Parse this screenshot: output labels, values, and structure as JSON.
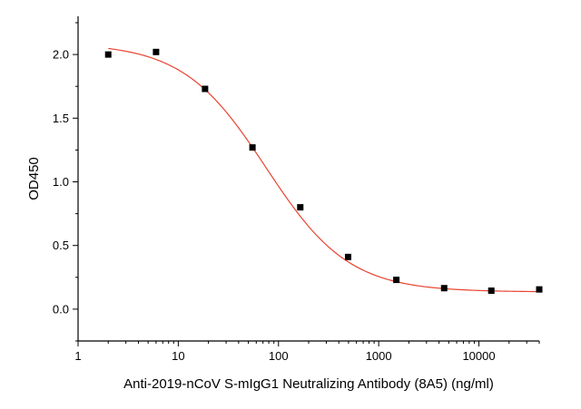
{
  "chart_data": {
    "type": "scatter",
    "title": "",
    "xlabel": "Anti-2019-nCoV S-mIgG1 Neutralizing Antibody (8A5) (ng/ml)",
    "ylabel": "OD450",
    "x_scale": "log",
    "xlim": [
      1,
      40000
    ],
    "ylim": [
      -0.25,
      2.3
    ],
    "x_ticks": [
      1,
      10,
      100,
      1000,
      10000
    ],
    "x_tick_labels": [
      "1",
      "10",
      "100",
      "1000",
      "10000"
    ],
    "y_ticks": [
      0.0,
      0.5,
      1.0,
      1.5,
      2.0
    ],
    "y_tick_labels": [
      "0.0",
      "0.5",
      "1.0",
      "1.5",
      "2.0"
    ],
    "grid": false,
    "series": [
      {
        "points": [
          {
            "x": 2,
            "y": 2.0
          },
          {
            "x": 6,
            "y": 2.02
          },
          {
            "x": 18.5,
            "y": 1.73
          },
          {
            "x": 55,
            "y": 1.27
          },
          {
            "x": 165,
            "y": 0.8
          },
          {
            "x": 495,
            "y": 0.41
          },
          {
            "x": 1500,
            "y": 0.23
          },
          {
            "x": 4500,
            "y": 0.165
          },
          {
            "x": 13300,
            "y": 0.145
          },
          {
            "x": 40000,
            "y": 0.155
          }
        ],
        "marker": "square",
        "color": "#000000"
      }
    ],
    "fit_curve": {
      "model": "4PL",
      "top": 2.09,
      "bottom": 0.135,
      "ec50": 75,
      "hill": 1.05,
      "color": "#e8432f"
    }
  }
}
